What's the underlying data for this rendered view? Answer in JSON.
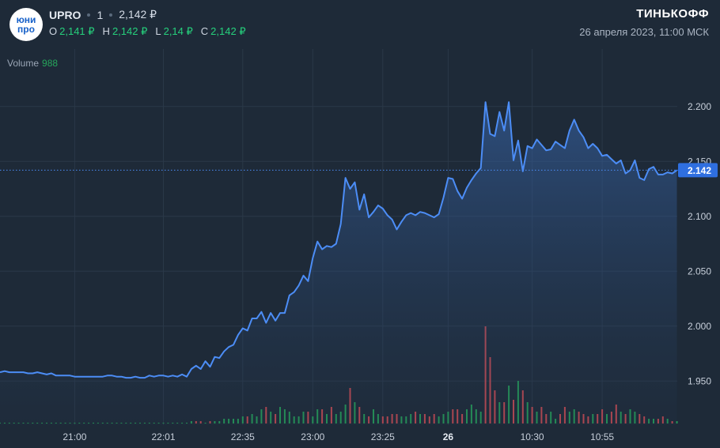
{
  "header": {
    "logo_line1": "юни",
    "logo_line2": "про",
    "symbol": "UPRO",
    "interval": "1",
    "price": "2,142 ₽",
    "ohlc": [
      {
        "key": "O",
        "value": "2,141 ₽"
      },
      {
        "key": "H",
        "value": "2,142 ₽"
      },
      {
        "key": "L",
        "value": "2,14 ₽"
      },
      {
        "key": "C",
        "value": "2,142 ₽"
      }
    ],
    "brand": "ТИНЬКОФФ",
    "datetime": "26 апреля 2023, 11:00 МСК"
  },
  "volume": {
    "label": "Volume",
    "value": "988"
  },
  "colors": {
    "line": "#4c8df6",
    "up": "#26a65b",
    "down": "#d64c54",
    "badge": "#2f6fe0"
  },
  "chart_data": {
    "type": "area",
    "ylim": [
      1.925,
      2.225
    ],
    "yticks": [
      {
        "v": 1.95,
        "label": "1.950"
      },
      {
        "v": 2.0,
        "label": "2.000"
      },
      {
        "v": 2.05,
        "label": "2.050"
      },
      {
        "v": 2.1,
        "label": "2.100"
      },
      {
        "v": 2.15,
        "label": "2.150"
      },
      {
        "v": 2.2,
        "label": "2.200"
      }
    ],
    "xticks": [
      {
        "i": 16,
        "label": "21:00"
      },
      {
        "i": 35,
        "label": "22:01"
      },
      {
        "i": 52,
        "label": "22:35"
      },
      {
        "i": 67,
        "label": "23:00"
      },
      {
        "i": 82,
        "label": "23:25"
      },
      {
        "i": 96,
        "label": "26"
      },
      {
        "i": 114,
        "label": "10:30"
      },
      {
        "i": 129,
        "label": "10:55"
      }
    ],
    "last_price": 2.142,
    "last_label": "2.142",
    "close": [
      1.958,
      1.959,
      1.958,
      1.958,
      1.958,
      1.958,
      1.957,
      1.957,
      1.958,
      1.957,
      1.956,
      1.957,
      1.955,
      1.955,
      1.955,
      1.955,
      1.954,
      1.954,
      1.954,
      1.954,
      1.954,
      1.954,
      1.954,
      1.955,
      1.955,
      1.954,
      1.954,
      1.953,
      1.953,
      1.954,
      1.953,
      1.953,
      1.955,
      1.954,
      1.955,
      1.955,
      1.954,
      1.955,
      1.954,
      1.956,
      1.954,
      1.961,
      1.964,
      1.961,
      1.968,
      1.963,
      1.972,
      1.971,
      1.977,
      1.981,
      1.983,
      1.992,
      1.998,
      1.996,
      2.007,
      2.007,
      2.013,
      2.003,
      2.012,
      2.005,
      2.012,
      2.012,
      2.028,
      2.031,
      2.037,
      2.046,
      2.041,
      2.062,
      2.077,
      2.07,
      2.073,
      2.072,
      2.075,
      2.093,
      2.135,
      2.125,
      2.131,
      2.106,
      2.12,
      2.099,
      2.104,
      2.11,
      2.107,
      2.101,
      2.097,
      2.088,
      2.095,
      2.101,
      2.103,
      2.101,
      2.104,
      2.103,
      2.101,
      2.099,
      2.102,
      2.117,
      2.135,
      2.134,
      2.123,
      2.116,
      2.126,
      2.133,
      2.139,
      2.144,
      2.204,
      2.175,
      2.173,
      2.195,
      2.178,
      2.204,
      2.151,
      2.169,
      2.141,
      2.164,
      2.162,
      2.17,
      2.165,
      2.16,
      2.161,
      2.168,
      2.165,
      2.162,
      2.178,
      2.188,
      2.178,
      2.172,
      2.162,
      2.166,
      2.162,
      2.155,
      2.156,
      2.152,
      2.148,
      2.151,
      2.139,
      2.142,
      2.151,
      2.135,
      2.133,
      2.143,
      2.145,
      2.138,
      2.138,
      2.14,
      2.139,
      2.142
    ],
    "volume": [
      0,
      0,
      0,
      0,
      0,
      0,
      0,
      0,
      0,
      0,
      0,
      0,
      0,
      0,
      0,
      0,
      0,
      0,
      0,
      0,
      0,
      0,
      0,
      0,
      0,
      0,
      0,
      0,
      0,
      0,
      0,
      0,
      0,
      0,
      0,
      0,
      0,
      0,
      0,
      0,
      0,
      1,
      1,
      1,
      0,
      1,
      1,
      1,
      2,
      2,
      2,
      2,
      3,
      3,
      4,
      3,
      6,
      7,
      5,
      4,
      7,
      6,
      5,
      3,
      3,
      5,
      5,
      3,
      6,
      6,
      4,
      7,
      4,
      5,
      8,
      15,
      9,
      7,
      4,
      3,
      6,
      4,
      3,
      3,
      4,
      4,
      3,
      3,
      4,
      5,
      4,
      4,
      3,
      4,
      3,
      4,
      5,
      6,
      6,
      4,
      6,
      8,
      6,
      5,
      41,
      28,
      14,
      9,
      9,
      16,
      10,
      18,
      14,
      9,
      7,
      5,
      7,
      4,
      5,
      2,
      4,
      7,
      5,
      6,
      5,
      4,
      3,
      4,
      4,
      6,
      4,
      5,
      8,
      5,
      4,
      6,
      5,
      4,
      3,
      2,
      2,
      2,
      3,
      2,
      1,
      1
    ],
    "volume_dir": [
      "u",
      "u",
      "u",
      "u",
      "u",
      "u",
      "u",
      "u",
      "u",
      "u",
      "u",
      "u",
      "u",
      "u",
      "u",
      "u",
      "u",
      "u",
      "u",
      "u",
      "u",
      "u",
      "u",
      "u",
      "u",
      "u",
      "u",
      "u",
      "u",
      "u",
      "u",
      "u",
      "u",
      "u",
      "u",
      "u",
      "u",
      "u",
      "u",
      "u",
      "u",
      "u",
      "d",
      "d",
      "u",
      "d",
      "u",
      "u",
      "u",
      "u",
      "u",
      "u",
      "u",
      "d",
      "u",
      "u",
      "u",
      "d",
      "u",
      "d",
      "u",
      "u",
      "u",
      "u",
      "u",
      "u",
      "d",
      "u",
      "u",
      "d",
      "u",
      "d",
      "u",
      "u",
      "u",
      "d",
      "u",
      "d",
      "u",
      "d",
      "u",
      "u",
      "d",
      "d",
      "d",
      "d",
      "u",
      "u",
      "u",
      "d",
      "u",
      "d",
      "d",
      "d",
      "u",
      "u",
      "u",
      "d",
      "d",
      "d",
      "u",
      "u",
      "u",
      "u",
      "d",
      "d",
      "d",
      "u",
      "d",
      "u",
      "d",
      "u",
      "d",
      "u",
      "d",
      "u",
      "d",
      "d",
      "u",
      "u",
      "d",
      "d",
      "u",
      "u",
      "d",
      "d",
      "d",
      "u",
      "d",
      "d",
      "u",
      "d",
      "d",
      "u",
      "d",
      "u",
      "u",
      "d",
      "d",
      "u",
      "u",
      "d",
      "d",
      "u",
      "d",
      "u"
    ]
  }
}
